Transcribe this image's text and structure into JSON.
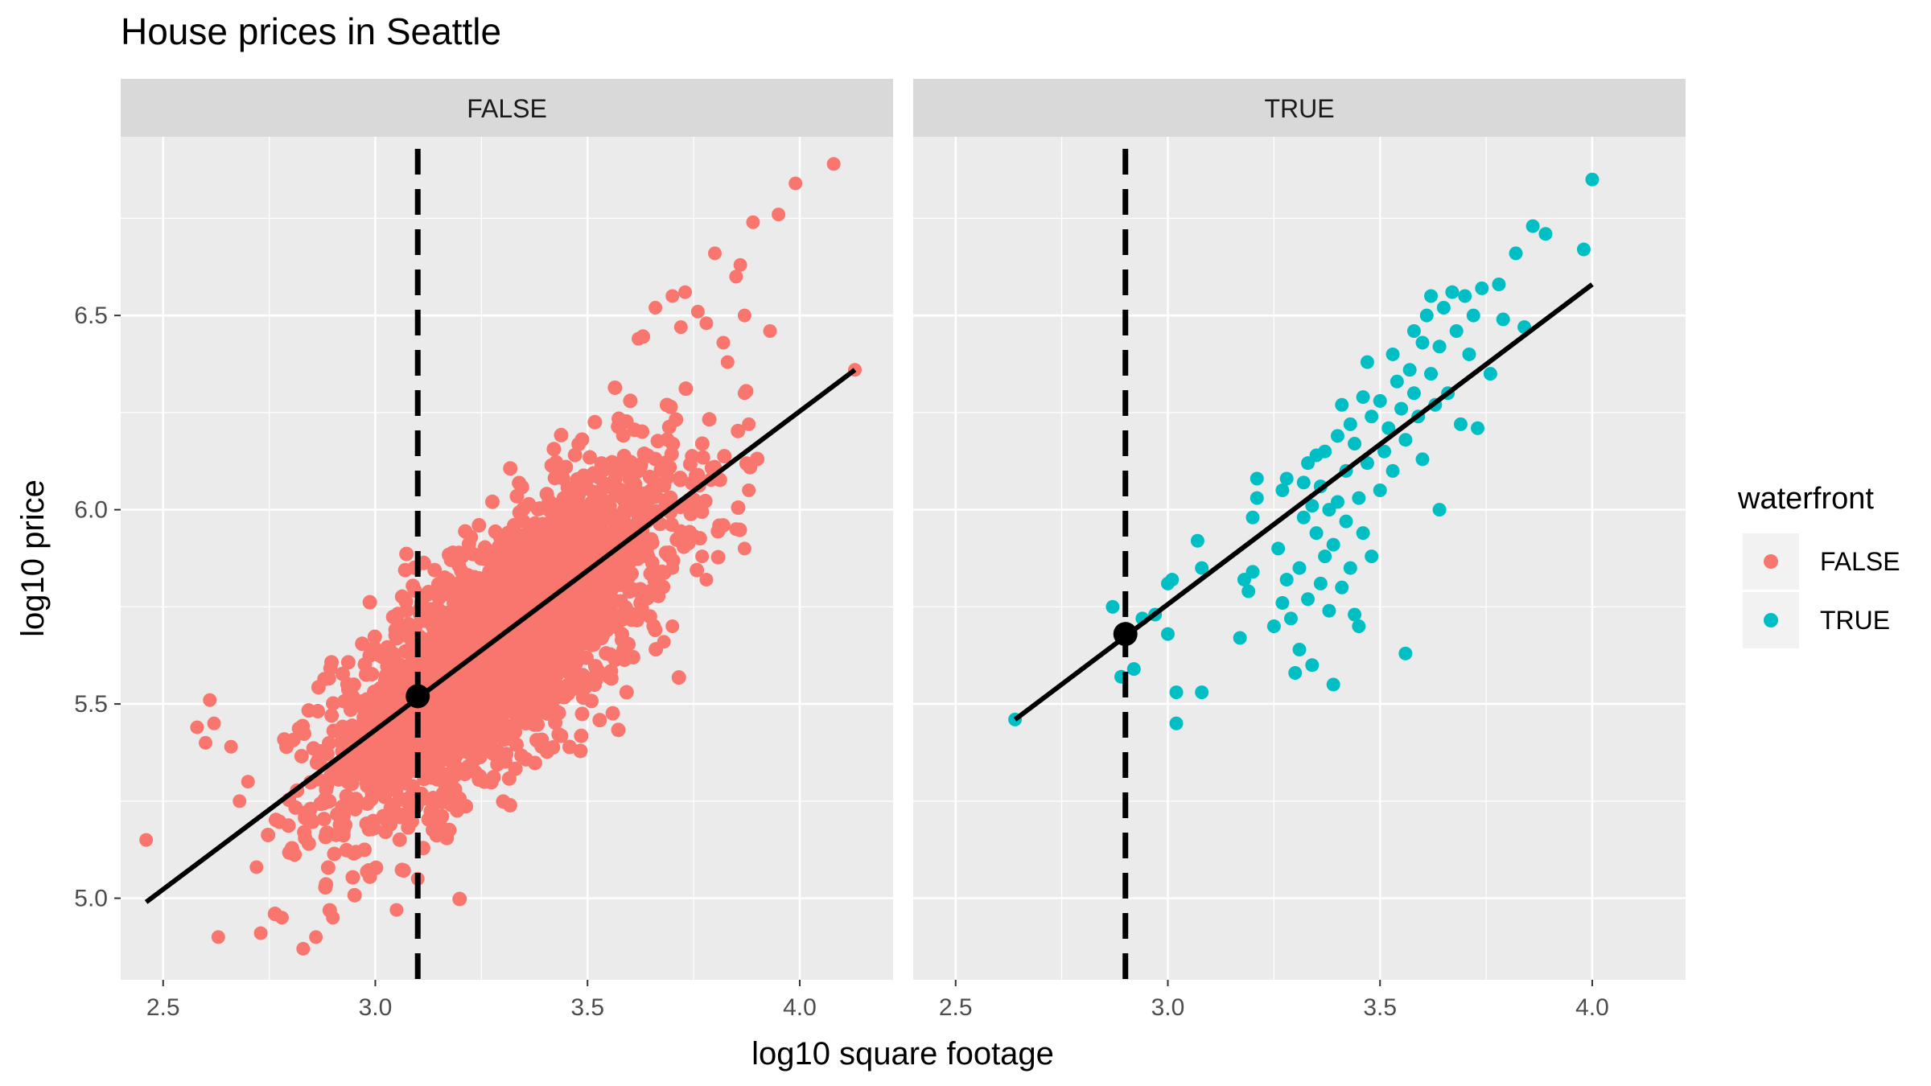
{
  "chart_data": {
    "type": "scatter",
    "title": "House prices in Seattle",
    "xlabel": "log10 square footage",
    "ylabel": "log10 price",
    "xlim": [
      2.4,
      4.22
    ],
    "ylim": [
      4.79,
      6.96
    ],
    "x_ticks": [
      2.5,
      3.0,
      3.5,
      4.0
    ],
    "x_tick_labels": [
      "2.5",
      "3.0",
      "3.5",
      "4.0"
    ],
    "y_ticks": [
      5.0,
      5.5,
      6.0,
      6.5
    ],
    "y_tick_labels": [
      "5.0",
      "5.5",
      "6.0",
      "6.5"
    ],
    "grid": true,
    "facet_variable": "waterfront",
    "legend": {
      "title": "waterfront",
      "position": "right",
      "entries": [
        {
          "label": "FALSE",
          "color": "#F8766D"
        },
        {
          "label": "TRUE",
          "color": "#00BFC4"
        }
      ]
    },
    "panels": [
      {
        "strip_label": "FALSE",
        "color": "#F8766D",
        "regression_line": {
          "x": [
            2.46,
            4.13
          ],
          "y": [
            4.99,
            6.36
          ]
        },
        "mean_point": {
          "x": 3.1,
          "y": 5.52
        },
        "vline_x": 3.1,
        "cloud": {
          "x_center": 3.3,
          "y_center": 5.66,
          "slope": 0.82,
          "x_sd": 0.2,
          "y_sd_resid": 0.2,
          "n_points": 2600
        },
        "points": [
          {
            "x": 2.46,
            "y": 5.15
          },
          {
            "x": 2.63,
            "y": 4.9
          },
          {
            "x": 2.58,
            "y": 5.44
          },
          {
            "x": 2.61,
            "y": 5.51
          },
          {
            "x": 2.62,
            "y": 5.45
          },
          {
            "x": 2.6,
            "y": 5.4
          },
          {
            "x": 2.66,
            "y": 5.39
          },
          {
            "x": 2.68,
            "y": 5.25
          },
          {
            "x": 2.7,
            "y": 5.3
          },
          {
            "x": 2.72,
            "y": 5.08
          },
          {
            "x": 2.73,
            "y": 4.91
          },
          {
            "x": 2.78,
            "y": 4.95
          },
          {
            "x": 2.83,
            "y": 4.87
          },
          {
            "x": 2.86,
            "y": 4.9
          },
          {
            "x": 2.9,
            "y": 4.95
          },
          {
            "x": 3.05,
            "y": 4.97
          },
          {
            "x": 3.1,
            "y": 5.05
          },
          {
            "x": 4.08,
            "y": 6.89
          },
          {
            "x": 3.99,
            "y": 6.84
          },
          {
            "x": 3.95,
            "y": 6.76
          },
          {
            "x": 3.89,
            "y": 6.74
          },
          {
            "x": 3.8,
            "y": 6.66
          },
          {
            "x": 3.86,
            "y": 6.63
          },
          {
            "x": 3.85,
            "y": 6.6
          },
          {
            "x": 4.13,
            "y": 6.36
          },
          {
            "x": 3.93,
            "y": 6.46
          },
          {
            "x": 3.87,
            "y": 6.5
          },
          {
            "x": 3.62,
            "y": 6.44
          },
          {
            "x": 3.66,
            "y": 6.52
          },
          {
            "x": 3.7,
            "y": 6.55
          },
          {
            "x": 3.73,
            "y": 6.56
          },
          {
            "x": 3.76,
            "y": 6.51
          },
          {
            "x": 3.78,
            "y": 6.48
          },
          {
            "x": 3.72,
            "y": 6.47
          },
          {
            "x": 3.82,
            "y": 6.43
          },
          {
            "x": 3.83,
            "y": 6.38
          },
          {
            "x": 3.87,
            "y": 6.3
          },
          {
            "x": 3.88,
            "y": 6.22
          },
          {
            "x": 3.88,
            "y": 6.05
          },
          {
            "x": 3.85,
            "y": 5.95
          },
          {
            "x": 3.87,
            "y": 5.9
          },
          {
            "x": 3.77,
            "y": 5.88
          },
          {
            "x": 3.7,
            "y": 5.85
          },
          {
            "x": 3.68,
            "y": 5.66
          },
          {
            "x": 3.7,
            "y": 5.7
          },
          {
            "x": 3.78,
            "y": 5.82
          },
          {
            "x": 3.81,
            "y": 5.96
          }
        ]
      },
      {
        "strip_label": "TRUE",
        "color": "#00BFC4",
        "regression_line": {
          "x": [
            2.64,
            4.0
          ],
          "y": [
            5.46,
            6.58
          ]
        },
        "mean_point": {
          "x": 2.9,
          "y": 5.68
        },
        "vline_x": 2.9,
        "points": [
          {
            "x": 2.64,
            "y": 5.46
          },
          {
            "x": 2.87,
            "y": 5.75
          },
          {
            "x": 2.89,
            "y": 5.57
          },
          {
            "x": 2.92,
            "y": 5.59
          },
          {
            "x": 2.91,
            "y": 5.68
          },
          {
            "x": 2.94,
            "y": 5.72
          },
          {
            "x": 2.97,
            "y": 5.73
          },
          {
            "x": 3.0,
            "y": 5.68
          },
          {
            "x": 3.0,
            "y": 5.81
          },
          {
            "x": 3.01,
            "y": 5.82
          },
          {
            "x": 3.02,
            "y": 5.53
          },
          {
            "x": 3.02,
            "y": 5.45
          },
          {
            "x": 3.08,
            "y": 5.53
          },
          {
            "x": 3.07,
            "y": 5.92
          },
          {
            "x": 3.08,
            "y": 5.85
          },
          {
            "x": 3.17,
            "y": 5.67
          },
          {
            "x": 3.18,
            "y": 5.82
          },
          {
            "x": 3.19,
            "y": 5.79
          },
          {
            "x": 3.2,
            "y": 5.84
          },
          {
            "x": 3.2,
            "y": 5.98
          },
          {
            "x": 3.21,
            "y": 6.03
          },
          {
            "x": 3.21,
            "y": 6.08
          },
          {
            "x": 3.25,
            "y": 5.7
          },
          {
            "x": 3.26,
            "y": 5.9
          },
          {
            "x": 3.27,
            "y": 6.05
          },
          {
            "x": 3.27,
            "y": 5.76
          },
          {
            "x": 3.28,
            "y": 6.08
          },
          {
            "x": 3.28,
            "y": 5.82
          },
          {
            "x": 3.29,
            "y": 5.72
          },
          {
            "x": 3.3,
            "y": 5.58
          },
          {
            "x": 3.31,
            "y": 5.64
          },
          {
            "x": 3.31,
            "y": 5.85
          },
          {
            "x": 3.32,
            "y": 6.07
          },
          {
            "x": 3.32,
            "y": 5.98
          },
          {
            "x": 3.33,
            "y": 5.77
          },
          {
            "x": 3.33,
            "y": 6.12
          },
          {
            "x": 3.34,
            "y": 5.6
          },
          {
            "x": 3.34,
            "y": 6.01
          },
          {
            "x": 3.35,
            "y": 5.94
          },
          {
            "x": 3.35,
            "y": 6.14
          },
          {
            "x": 3.36,
            "y": 5.81
          },
          {
            "x": 3.36,
            "y": 6.06
          },
          {
            "x": 3.37,
            "y": 5.88
          },
          {
            "x": 3.37,
            "y": 6.15
          },
          {
            "x": 3.38,
            "y": 5.74
          },
          {
            "x": 3.38,
            "y": 6.0
          },
          {
            "x": 3.39,
            "y": 5.55
          },
          {
            "x": 3.39,
            "y": 5.91
          },
          {
            "x": 3.4,
            "y": 6.19
          },
          {
            "x": 3.4,
            "y": 6.02
          },
          {
            "x": 3.41,
            "y": 5.8
          },
          {
            "x": 3.41,
            "y": 6.27
          },
          {
            "x": 3.42,
            "y": 6.1
          },
          {
            "x": 3.42,
            "y": 5.97
          },
          {
            "x": 3.43,
            "y": 5.85
          },
          {
            "x": 3.43,
            "y": 6.22
          },
          {
            "x": 3.44,
            "y": 5.73
          },
          {
            "x": 3.44,
            "y": 6.17
          },
          {
            "x": 3.45,
            "y": 5.7
          },
          {
            "x": 3.45,
            "y": 6.03
          },
          {
            "x": 3.46,
            "y": 5.94
          },
          {
            "x": 3.46,
            "y": 6.29
          },
          {
            "x": 3.47,
            "y": 6.38
          },
          {
            "x": 3.47,
            "y": 6.12
          },
          {
            "x": 3.48,
            "y": 5.88
          },
          {
            "x": 3.48,
            "y": 6.24
          },
          {
            "x": 3.5,
            "y": 6.28
          },
          {
            "x": 3.5,
            "y": 6.05
          },
          {
            "x": 3.51,
            "y": 6.15
          },
          {
            "x": 3.52,
            "y": 6.21
          },
          {
            "x": 3.53,
            "y": 6.4
          },
          {
            "x": 3.53,
            "y": 6.1
          },
          {
            "x": 3.54,
            "y": 6.33
          },
          {
            "x": 3.55,
            "y": 6.26
          },
          {
            "x": 3.56,
            "y": 6.18
          },
          {
            "x": 3.56,
            "y": 5.63
          },
          {
            "x": 3.57,
            "y": 6.36
          },
          {
            "x": 3.58,
            "y": 6.3
          },
          {
            "x": 3.58,
            "y": 6.46
          },
          {
            "x": 3.59,
            "y": 6.24
          },
          {
            "x": 3.6,
            "y": 6.43
          },
          {
            "x": 3.6,
            "y": 6.13
          },
          {
            "x": 3.61,
            "y": 6.5
          },
          {
            "x": 3.62,
            "y": 6.55
          },
          {
            "x": 3.62,
            "y": 6.35
          },
          {
            "x": 3.63,
            "y": 6.27
          },
          {
            "x": 3.64,
            "y": 6.0
          },
          {
            "x": 3.64,
            "y": 6.42
          },
          {
            "x": 3.65,
            "y": 6.52
          },
          {
            "x": 3.66,
            "y": 6.3
          },
          {
            "x": 3.67,
            "y": 6.56
          },
          {
            "x": 3.68,
            "y": 6.46
          },
          {
            "x": 3.69,
            "y": 6.22
          },
          {
            "x": 3.7,
            "y": 6.55
          },
          {
            "x": 3.71,
            "y": 6.4
          },
          {
            "x": 3.72,
            "y": 6.5
          },
          {
            "x": 3.73,
            "y": 6.21
          },
          {
            "x": 3.74,
            "y": 6.57
          },
          {
            "x": 3.76,
            "y": 6.35
          },
          {
            "x": 3.78,
            "y": 6.58
          },
          {
            "x": 3.79,
            "y": 6.49
          },
          {
            "x": 3.82,
            "y": 6.66
          },
          {
            "x": 3.84,
            "y": 6.47
          },
          {
            "x": 3.86,
            "y": 6.73
          },
          {
            "x": 3.89,
            "y": 6.71
          },
          {
            "x": 3.98,
            "y": 6.67
          },
          {
            "x": 4.0,
            "y": 6.85
          }
        ]
      }
    ]
  }
}
